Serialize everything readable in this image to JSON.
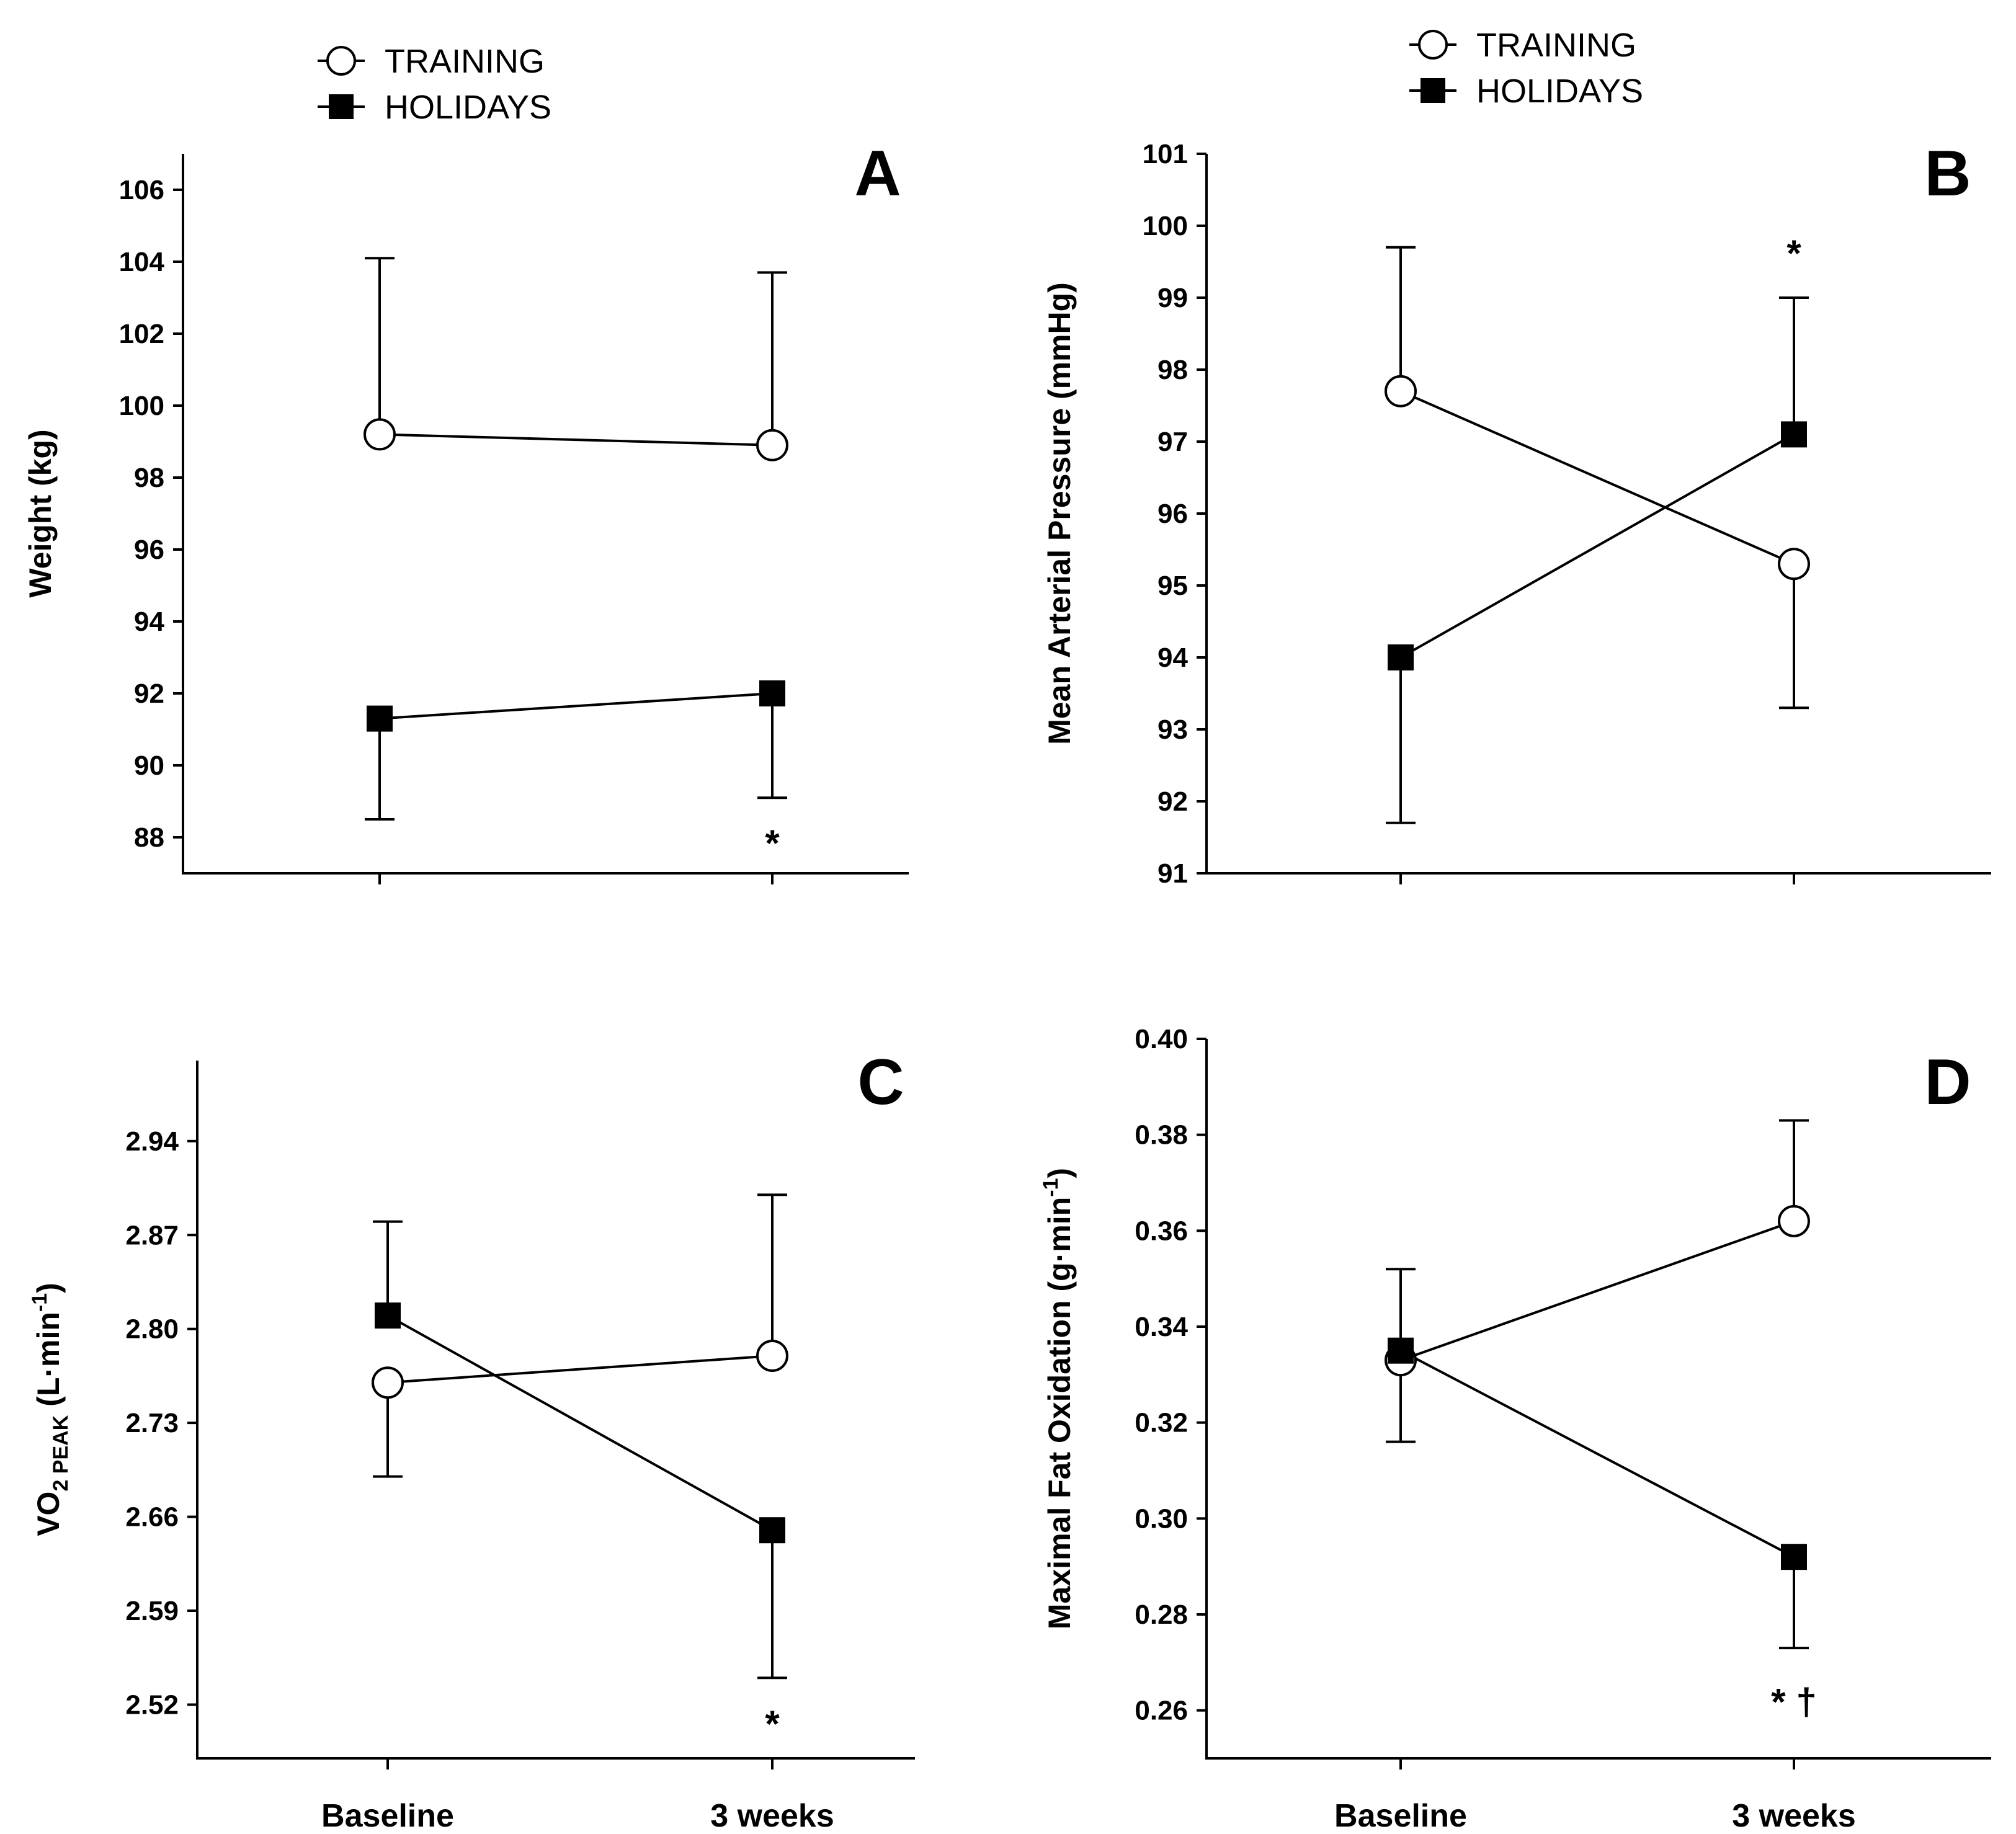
{
  "chart_data": [
    {
      "type": "line",
      "panel": "A",
      "categories": [
        "Baseline",
        "3 weeks"
      ],
      "ylabel": "Weight (kg)",
      "ylim": [
        87,
        107
      ],
      "yticks": [
        "88",
        "90",
        "92",
        "94",
        "96",
        "98",
        "100",
        "102",
        "104",
        "106"
      ],
      "xtick_labels_shown": false,
      "legend": [
        "TRAINING",
        "HOLIDAYS"
      ],
      "legend_position": "top-center",
      "series": [
        {
          "name": "TRAINING",
          "marker": "open-circle",
          "values": [
            99.2,
            98.9
          ],
          "err_upper": [
            104.1,
            103.7
          ]
        },
        {
          "name": "HOLIDAYS",
          "marker": "filled-square",
          "values": [
            91.3,
            92.0
          ],
          "err_lower": [
            88.5,
            89.1
          ]
        }
      ],
      "annotations": [
        {
          "text": "*",
          "category": "3 weeks",
          "y": 88.0
        }
      ]
    },
    {
      "type": "line",
      "panel": "B",
      "categories": [
        "Baseline",
        "3 weeks"
      ],
      "ylabel": "Mean Arterial Pressure (mmHg)",
      "ylim": [
        91,
        101
      ],
      "yticks": [
        "91",
        "92",
        "93",
        "94",
        "95",
        "96",
        "97",
        "98",
        "99",
        "100",
        "101"
      ],
      "xtick_labels_shown": false,
      "legend": [
        "TRAINING",
        "HOLIDAYS"
      ],
      "legend_position": "top-center",
      "series": [
        {
          "name": "TRAINING",
          "marker": "open-circle",
          "values": [
            97.7,
            95.3
          ],
          "err_upper": [
            99.7
          ],
          "err_lower": [
            null,
            93.3
          ]
        },
        {
          "name": "HOLIDAYS",
          "marker": "filled-square",
          "values": [
            94.0,
            97.1
          ],
          "err_lower": [
            91.7
          ],
          "err_upper": [
            null,
            99.0
          ]
        }
      ],
      "annotations": [
        {
          "text": "*",
          "category": "3 weeks",
          "y": 99.7
        }
      ]
    },
    {
      "type": "line",
      "panel": "C",
      "categories": [
        "Baseline",
        "3 weeks"
      ],
      "ylabel_main": "VO",
      "ylabel_sub": "2 PEAK",
      "ylabel_units": " (L·min",
      "ylabel_sup": "-1",
      "ylabel_close": ")",
      "ylim": [
        2.48,
        3.0
      ],
      "yticks": [
        "2.52",
        "2.59",
        "2.66",
        "2.73",
        "2.80",
        "2.87",
        "2.94"
      ],
      "xtick_labels_shown": true,
      "series": [
        {
          "name": "TRAINING",
          "marker": "open-circle",
          "values": [
            2.76,
            2.78
          ],
          "err_lower": [
            2.69
          ],
          "err_upper": [
            null,
            2.9
          ]
        },
        {
          "name": "HOLIDAYS",
          "marker": "filled-square",
          "values": [
            2.81,
            2.65
          ],
          "err_upper": [
            2.88
          ],
          "err_lower": [
            null,
            2.54
          ]
        }
      ],
      "annotations": [
        {
          "text": "*",
          "category": "3 weeks",
          "y": 2.51
        }
      ]
    },
    {
      "type": "line",
      "panel": "D",
      "categories": [
        "Baseline",
        "3 weeks"
      ],
      "ylabel_main": "Maximal Fat Oxidation (g·min",
      "ylabel_sup": "-1",
      "ylabel_close": ")",
      "ylim": [
        0.25,
        0.4
      ],
      "yticks": [
        "0.26",
        "0.28",
        "0.30",
        "0.32",
        "0.34",
        "0.36",
        "0.38",
        "0.40"
      ],
      "xtick_labels_shown": true,
      "series": [
        {
          "name": "TRAINING",
          "marker": "open-circle",
          "values": [
            0.333,
            0.362
          ],
          "err_lower": [
            0.316
          ],
          "err_upper": [
            null,
            0.383
          ]
        },
        {
          "name": "HOLIDAYS",
          "marker": "filled-square",
          "values": [
            0.335,
            0.292
          ],
          "err_upper": [
            0.352
          ],
          "err_lower": [
            null,
            0.273
          ]
        }
      ],
      "annotations": [
        {
          "text": "* †",
          "category": "3 weeks",
          "y": 0.263
        }
      ]
    }
  ]
}
